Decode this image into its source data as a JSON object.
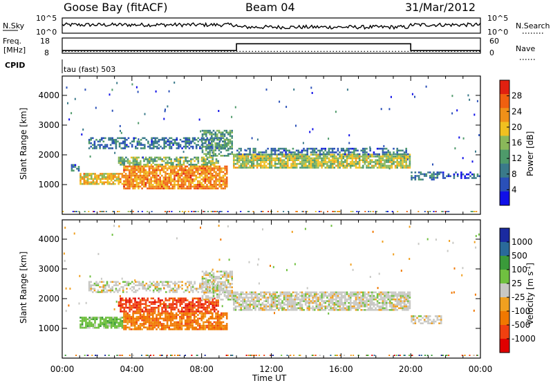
{
  "header": {
    "station": "Goose Bay (fitACF)",
    "beam": "Beam 04",
    "date": "31/Mar/2012"
  },
  "panels": {
    "nsky": {
      "left_label": "N.Sky",
      "right_label": "N.Search",
      "left_ticks": [
        "10^5",
        "10^0"
      ],
      "right_ticks": [
        "10^5",
        "10^0"
      ]
    },
    "freq": {
      "left_label": "Freq.",
      "left_unit": "[MHz]",
      "right_label": "Nave",
      "left_ticks": [
        "18",
        "8"
      ],
      "right_ticks": [
        "60",
        "0"
      ]
    },
    "cpid": {
      "label": "CPID",
      "mode": "tau (fast) 503"
    }
  },
  "colors": {
    "power": [
      "#1010e8",
      "#2a50b8",
      "#3a7a8a",
      "#4e9a6a",
      "#8ab85a",
      "#f0c020",
      "#f09018",
      "#f06010",
      "#e02010"
    ],
    "velocity": [
      "#e00000",
      "#f04010",
      "#f07800",
      "#f0a020",
      "#c8c8c4",
      "#70c040",
      "#3a9a3a",
      "#2a6a9a",
      "#1a2aa0"
    ],
    "ground_scatter": "#c0c0bc"
  },
  "chart_data": [
    {
      "type": "heatmap",
      "name": "power",
      "ylabel": "Slant Range [km]",
      "yticks": [
        "1000",
        "2000",
        "3000",
        "4000"
      ],
      "ylim": [
        0,
        4650
      ],
      "xlim": [
        0,
        24
      ],
      "colorbar": {
        "label": "Power [dB]",
        "ticks": [
          "4",
          "8",
          "12",
          "16",
          "20",
          "24",
          "28"
        ],
        "range": [
          0,
          32
        ]
      },
      "scatter_regions": [
        {
          "t0": 1.0,
          "t1": 3.5,
          "r0": 1050,
          "r1": 1450,
          "level": 20,
          "density": 0.8
        },
        {
          "t0": 3.5,
          "t1": 9.5,
          "r0": 900,
          "r1": 1700,
          "level": 24,
          "density": 0.85
        },
        {
          "t0": 3.2,
          "t1": 9.0,
          "r0": 1700,
          "r1": 2000,
          "level": 14,
          "density": 0.7
        },
        {
          "t0": 1.5,
          "t1": 9.5,
          "r0": 2250,
          "r1": 2650,
          "level": 8,
          "density": 0.55
        },
        {
          "t0": 8.0,
          "t1": 9.8,
          "r0": 2000,
          "r1": 2900,
          "level": 12,
          "density": 0.6
        },
        {
          "t0": 9.8,
          "t1": 20.0,
          "r0": 1600,
          "r1": 2100,
          "level": 17,
          "density": 0.85
        },
        {
          "t0": 10.0,
          "t1": 20.0,
          "r0": 2050,
          "r1": 2300,
          "level": 8,
          "density": 0.5
        },
        {
          "t0": 20.0,
          "t1": 21.8,
          "r0": 1200,
          "r1": 1500,
          "level": 9,
          "density": 0.6
        },
        {
          "t0": 21.5,
          "t1": 24.0,
          "r0": 1250,
          "r1": 1500,
          "level": 6,
          "density": 0.3
        },
        {
          "t0": 0.5,
          "t1": 1.0,
          "r0": 1500,
          "r1": 1750,
          "level": 8,
          "density": 0.5
        }
      ]
    },
    {
      "type": "heatmap",
      "name": "velocity",
      "ylabel": "Slant Range [km]",
      "yticks": [
        "1000",
        "2000",
        "3000",
        "4000"
      ],
      "ylim": [
        0,
        4650
      ],
      "xlim": [
        0,
        24
      ],
      "xlabel": "Time UT",
      "xticks": [
        "00:00",
        "04:00",
        "08:00",
        "12:00",
        "16:00",
        "20:00",
        "00:00"
      ],
      "colorbar": {
        "label": "Velocity [m s",
        "label_exp": "-1",
        "ticks": [
          "1000",
          "500",
          "100",
          "25",
          "-25",
          "-100",
          "-500",
          "-1000"
        ]
      },
      "scatter_regions": [
        {
          "t0": 1.0,
          "t1": 3.5,
          "r0": 1050,
          "r1": 1450,
          "level": 5,
          "density": 0.8
        },
        {
          "t0": 3.5,
          "t1": 9.5,
          "r0": 1000,
          "r1": 1600,
          "level": 2,
          "density": 0.8
        },
        {
          "t0": 3.2,
          "t1": 9.0,
          "r0": 1600,
          "r1": 2100,
          "level": 1,
          "density": 0.7
        },
        {
          "t0": 1.5,
          "t1": 9.5,
          "r0": 2250,
          "r1": 2650,
          "level": 4,
          "density": 0.55
        },
        {
          "t0": 8.0,
          "t1": 9.8,
          "r0": 2000,
          "r1": 3000,
          "level": 4,
          "density": 0.6
        },
        {
          "t0": 9.8,
          "t1": 20.0,
          "r0": 1650,
          "r1": 2300,
          "level": 4,
          "density": 0.8
        },
        {
          "t0": 20.0,
          "t1": 21.8,
          "r0": 1200,
          "r1": 1500,
          "level": 4,
          "density": 0.6
        }
      ]
    }
  ],
  "timeseries": {
    "nsky_level": 0.55,
    "freq_step": {
      "low": 0.18,
      "high": 0.62,
      "t_on": 10.0,
      "t_off": 20.0
    },
    "nave_level": 0.12
  }
}
